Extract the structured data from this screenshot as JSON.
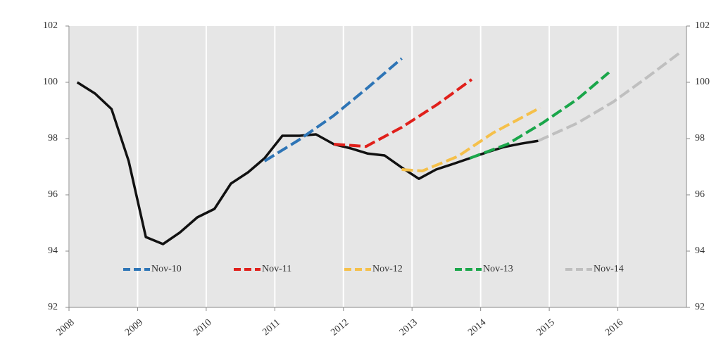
{
  "chart_data": {
    "type": "line",
    "xlim": [
      2008,
      2017
    ],
    "xticks": [
      2008,
      2009,
      2010,
      2011,
      2012,
      2013,
      2014,
      2015,
      2016
    ],
    "ylim": [
      92,
      102
    ],
    "yticks": [
      92,
      94,
      96,
      98,
      100,
      102
    ],
    "y2lim": [
      92,
      102
    ],
    "y2ticks": [
      92,
      94,
      96,
      98,
      100,
      102
    ],
    "xgrid": true,
    "series": [
      {
        "color": "#111111",
        "dashed": false,
        "x": [
          2008.12,
          2008.38,
          2008.62,
          2008.87,
          2009.12,
          2009.37,
          2009.61,
          2009.87,
          2010.12,
          2010.36,
          2010.61,
          2010.85,
          2011.11,
          2011.36,
          2011.6,
          2011.86,
          2012.11,
          2012.35,
          2012.6,
          2012.85,
          2013.1,
          2013.35,
          2013.6,
          2013.84,
          2014.1,
          2014.34,
          2014.59,
          2014.84
        ],
        "values": [
          100.0,
          99.6,
          99.05,
          97.2,
          94.5,
          94.25,
          94.65,
          95.2,
          95.5,
          96.4,
          96.8,
          97.3,
          98.1,
          98.1,
          98.15,
          97.8,
          97.65,
          97.47,
          97.4,
          96.97,
          96.57,
          96.9,
          97.1,
          97.3,
          97.52,
          97.7,
          97.82,
          97.92
        ]
      },
      {
        "name": "Nov-10",
        "color": "#2e75b6",
        "dashed": true,
        "x": [
          2010.85,
          2011.35,
          2011.85,
          2012.35,
          2012.85
        ],
        "values": [
          97.2,
          97.95,
          98.8,
          99.8,
          100.85
        ]
      },
      {
        "name": "Nov-11",
        "color": "#e0201b",
        "dashed": true,
        "x": [
          2011.86,
          2012.33,
          2012.85,
          2013.36,
          2013.87
        ],
        "values": [
          97.8,
          97.72,
          98.4,
          99.2,
          100.1
        ]
      },
      {
        "name": "Nov-12",
        "color": "#f5c04a",
        "dashed": true,
        "x": [
          2012.85,
          2013.15,
          2013.67,
          2014.18,
          2014.87
        ],
        "values": [
          96.9,
          96.85,
          97.37,
          98.2,
          99.1
        ]
      },
      {
        "name": "Nov-13",
        "color": "#1aa64a",
        "dashed": true,
        "x": [
          2013.84,
          2014.39,
          2014.9,
          2015.41,
          2015.87
        ],
        "values": [
          97.3,
          97.8,
          98.55,
          99.4,
          100.35
        ]
      },
      {
        "name": "Nov-14",
        "color": "#bfbfbf",
        "dashed": true,
        "x": [
          2014.84,
          2015.41,
          2015.93,
          2016.44,
          2016.93
        ],
        "values": [
          97.92,
          98.55,
          99.3,
          100.2,
          101.1
        ]
      }
    ]
  }
}
